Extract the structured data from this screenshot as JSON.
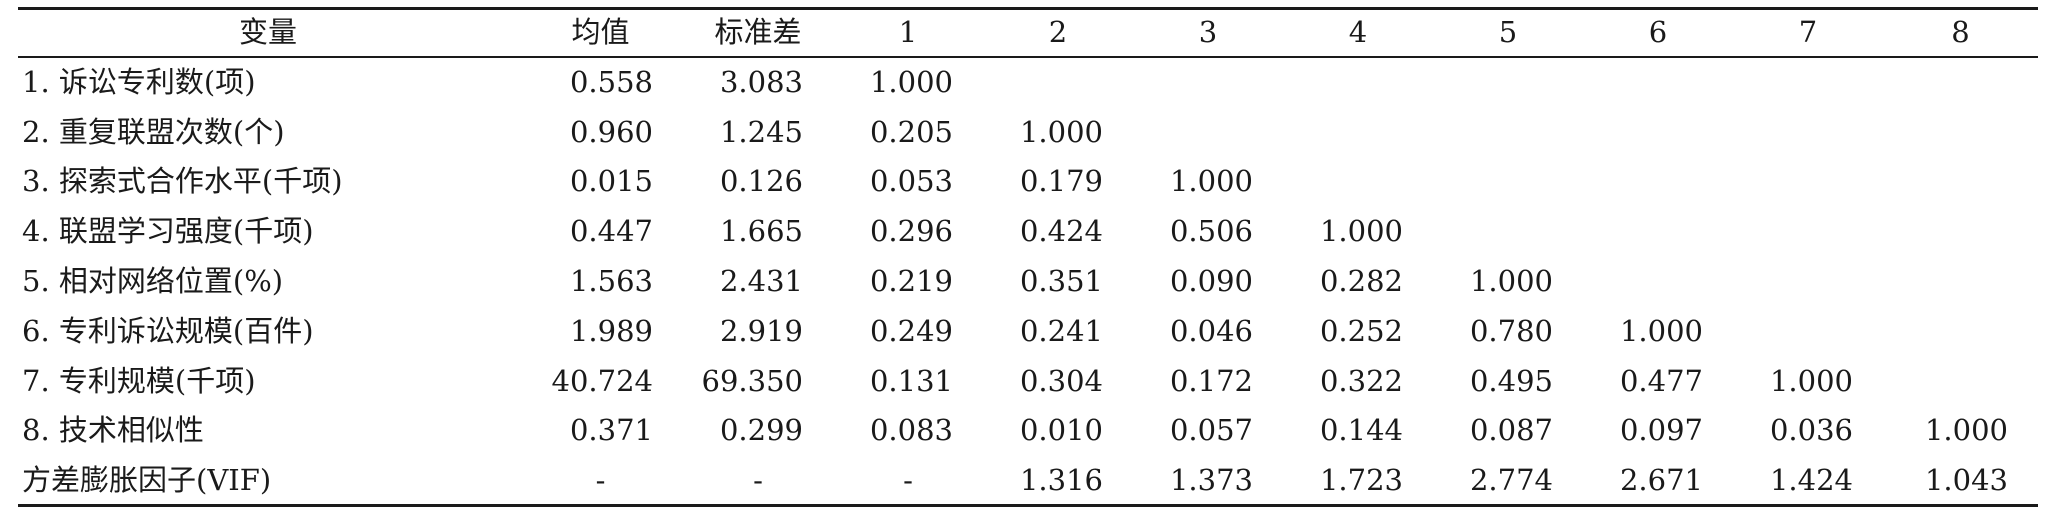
{
  "table": {
    "headers": [
      "变量",
      "均值",
      "标准差",
      "1",
      "2",
      "3",
      "4",
      "5",
      "6",
      "7",
      "8"
    ],
    "rows": [
      {
        "label": "1. 诉讼专利数(项)",
        "cells": [
          "0.558",
          "3.083",
          "1.000",
          "",
          "",
          "",
          "",
          "",
          "",
          ""
        ]
      },
      {
        "label": "2. 重复联盟次数(个)",
        "cells": [
          "0.960",
          "1.245",
          "0.205",
          "1.000",
          "",
          "",
          "",
          "",
          "",
          ""
        ]
      },
      {
        "label": "3. 探索式合作水平(千项)",
        "cells": [
          "0.015",
          "0.126",
          "0.053",
          "0.179",
          "1.000",
          "",
          "",
          "",
          "",
          ""
        ]
      },
      {
        "label": "4. 联盟学习强度(千项)",
        "cells": [
          "0.447",
          "1.665",
          "0.296",
          "0.424",
          "0.506",
          "1.000",
          "",
          "",
          "",
          ""
        ]
      },
      {
        "label": "5. 相对网络位置(%)",
        "cells": [
          "1.563",
          "2.431",
          "0.219",
          "0.351",
          "0.090",
          "0.282",
          "1.000",
          "",
          "",
          ""
        ]
      },
      {
        "label": "6. 专利诉讼规模(百件)",
        "cells": [
          "1.989",
          "2.919",
          "0.249",
          "0.241",
          "0.046",
          "0.252",
          "0.780",
          "1.000",
          "",
          ""
        ]
      },
      {
        "label": "7. 专利规模(千项)",
        "cells": [
          "40.724",
          "69.350",
          "0.131",
          "0.304",
          "0.172",
          "0.322",
          "0.495",
          "0.477",
          "1.000",
          ""
        ]
      },
      {
        "label": "8. 技术相似性",
        "cells": [
          "0.371",
          "0.299",
          "0.083",
          "0.010",
          "0.057",
          "0.144",
          "0.087",
          "0.097",
          "0.036",
          "1.000"
        ]
      },
      {
        "label": "方差膨胀因子(VIF)",
        "cells": [
          "-",
          "-",
          "-",
          "1.316",
          "1.373",
          "1.723",
          "2.774",
          "2.671",
          "1.424",
          "1.043"
        ]
      }
    ]
  }
}
